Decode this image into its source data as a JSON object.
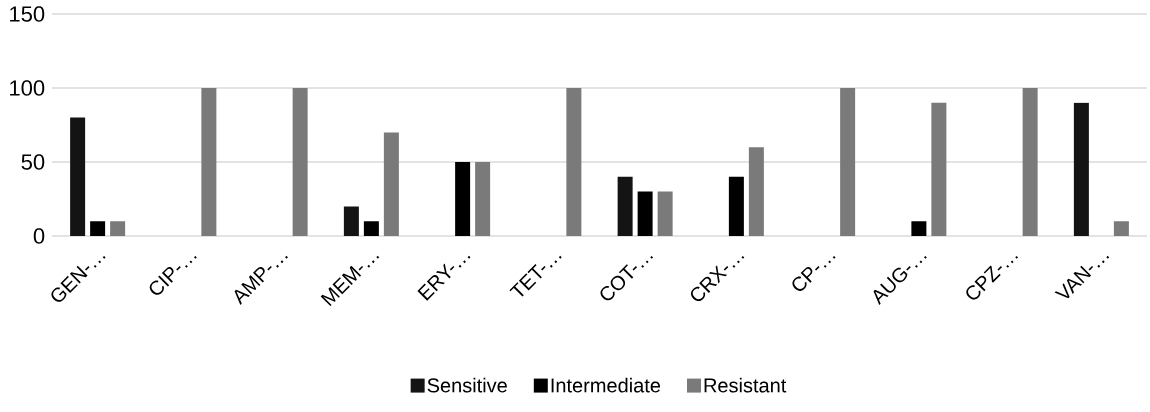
{
  "chart_data": {
    "type": "bar",
    "categories": [
      "GEN-…",
      "CIP-…",
      "AMP-…",
      "MEM-…",
      "ERY-…",
      "TET-…",
      "COT-…",
      "CRX-…",
      "CP-…",
      "AUG-…",
      "CPZ-…",
      "VAN-…"
    ],
    "series": [
      {
        "name": "Sensitive",
        "color": "#141414",
        "values": [
          80,
          0,
          0,
          20,
          0,
          0,
          40,
          0,
          0,
          0,
          0,
          90
        ]
      },
      {
        "name": "Intermediate",
        "color": "#000000",
        "values": [
          10,
          0,
          0,
          10,
          50,
          0,
          30,
          40,
          0,
          10,
          0,
          0
        ]
      },
      {
        "name": "Resistant",
        "color": "#7a7a7a",
        "values": [
          10,
          100,
          100,
          70,
          50,
          100,
          30,
          60,
          100,
          90,
          100,
          10
        ]
      }
    ],
    "ylim": [
      0,
      150
    ],
    "yticks": [
      0,
      50,
      100,
      150
    ],
    "grid": "y",
    "legend": "bottom"
  }
}
